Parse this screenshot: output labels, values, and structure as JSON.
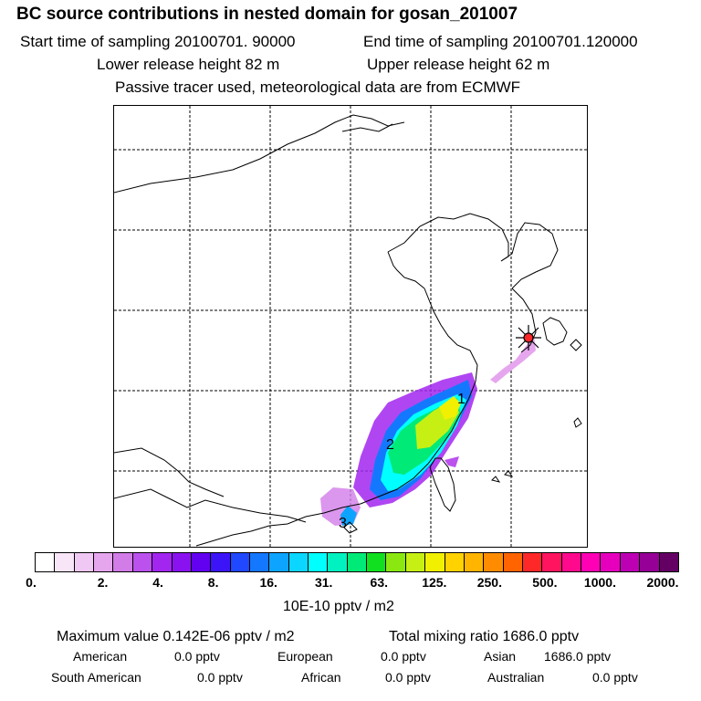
{
  "header": {
    "title": "BC  source contributions in nested domain for gosan_201007",
    "start": "Start time of sampling 20100701. 90000",
    "end": "End time of sampling 20100701.120000",
    "lower": "Lower release height   82 m",
    "upper": "Upper release height   62 m",
    "note": "Passive tracer used, meteorological data are from ECMWF"
  },
  "map": {
    "labels": [
      "1",
      "2",
      "3"
    ]
  },
  "colorbar": {
    "colors": [
      "#ffffff",
      "#f8e6f8",
      "#f0c8f4",
      "#e6a6ee",
      "#d27ce8",
      "#bb52ee",
      "#a226f0",
      "#8a12f0",
      "#6200f0",
      "#3c14f8",
      "#2048ff",
      "#1478ff",
      "#0ca4ff",
      "#0ad6ff",
      "#00ffff",
      "#00f2c0",
      "#00ea78",
      "#10e020",
      "#8ae810",
      "#c6f014",
      "#f0f000",
      "#ffd200",
      "#ffb400",
      "#ff8c00",
      "#ff6400",
      "#ff2828",
      "#ff1460",
      "#ff0a8c",
      "#ff00b4",
      "#e600be",
      "#be00b4",
      "#960096",
      "#640064"
    ],
    "ticks": [
      "0.",
      "2.",
      "4.",
      "8.",
      "16.",
      "31.",
      "63.",
      "125.",
      "250.",
      "500.",
      "1000.",
      "2000."
    ],
    "units": "10E-10 pptv / m2"
  },
  "summary": {
    "max": "Maximum value  0.142E-06 pptv / m2",
    "total": "Total mixing ratio      1686.0 pptv",
    "american_label": "American",
    "american_value": "0.0 pptv",
    "european_label": "European",
    "european_value": "0.0 pptv",
    "asian_label": "Asian",
    "asian_value": "1686.0 pptv",
    "south_american_label": "South American",
    "south_american_value": "0.0 pptv",
    "african_label": "African",
    "african_value": "0.0 pptv",
    "australian_label": "Australian",
    "australian_value": "0.0 pptv"
  }
}
